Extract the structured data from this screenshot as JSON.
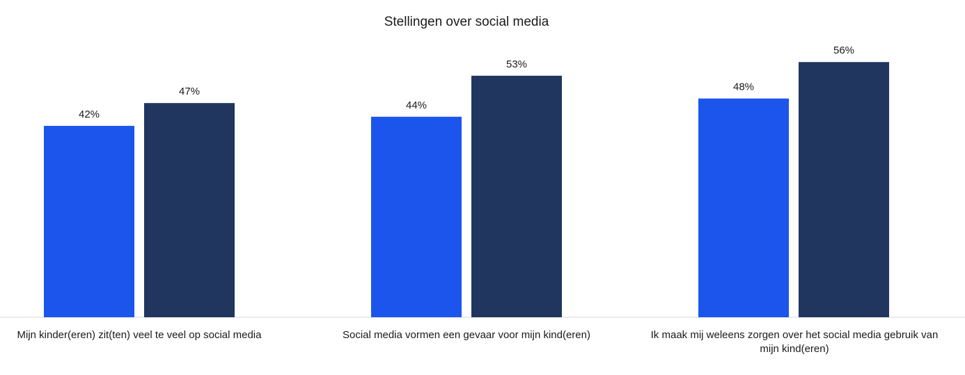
{
  "chart_data": {
    "type": "bar",
    "title": "Stellingen over social media",
    "xlabel": "",
    "ylabel": "",
    "ylim": [
      0,
      60
    ],
    "grid": false,
    "legend": "none",
    "categories": [
      [
        "Mijn kinder(eren) zit(ten) veel te veel op social media"
      ],
      [
        "Social media vormen een gevaar voor mijn kind(eren)"
      ],
      [
        "Ik maak mij weleens zorgen over het social media gebruik van",
        "mijn kind(eren)"
      ]
    ],
    "series": [
      {
        "color": "#1c55ec",
        "values": [
          42,
          44,
          48
        ],
        "labels": [
          "42%",
          "44%",
          "48%"
        ]
      },
      {
        "color": "#20365f",
        "values": [
          47,
          53,
          56
        ],
        "labels": [
          "47%",
          "53%",
          "56%"
        ]
      }
    ]
  }
}
